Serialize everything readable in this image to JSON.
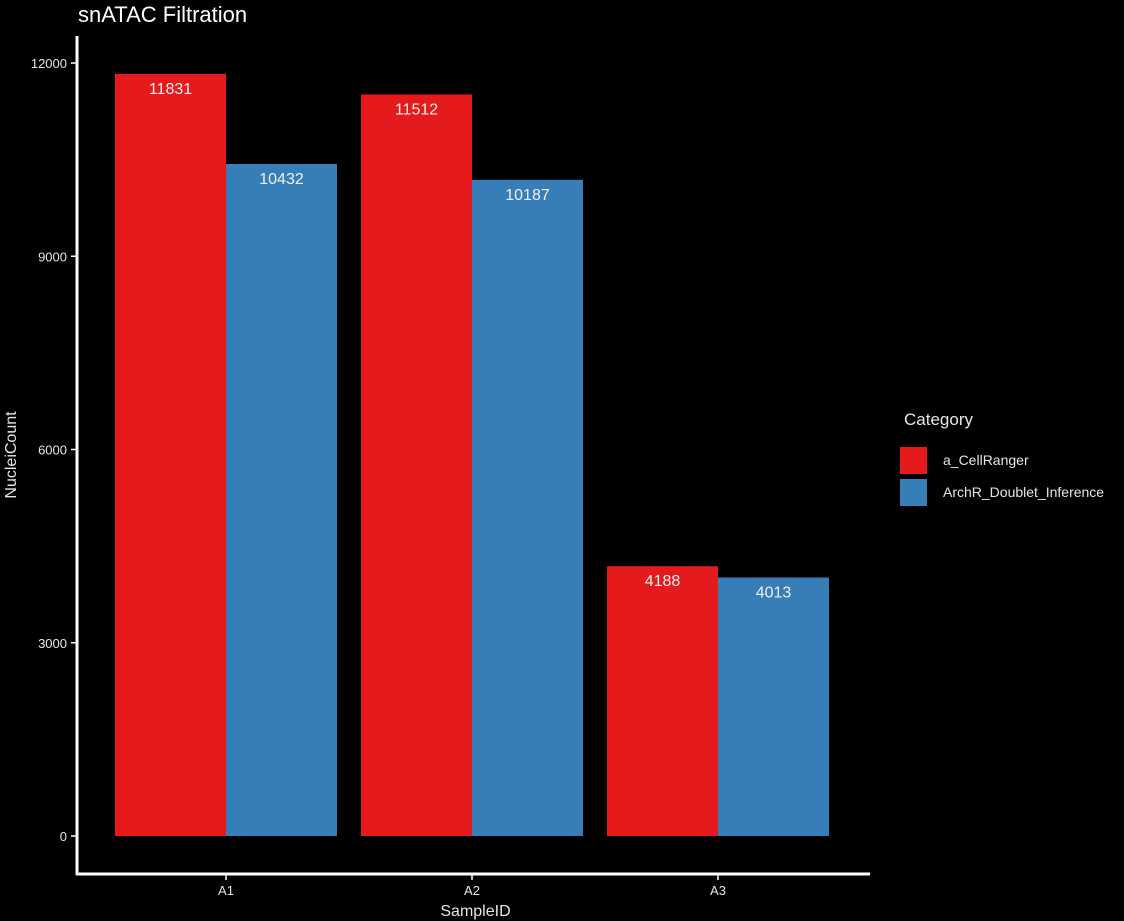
{
  "chart_data": {
    "type": "bar",
    "title": "snATAC Filtration",
    "xlabel": "SampleID",
    "ylabel": "NucleiCount",
    "categories": [
      "A1",
      "A2",
      "A3"
    ],
    "series": [
      {
        "name": "a_CellRanger",
        "color": "#e41a1c",
        "values": [
          11831,
          11512,
          4188
        ]
      },
      {
        "name": "ArchR_Doublet_Inference",
        "color": "#377eb8",
        "values": [
          10432,
          10187,
          4013
        ]
      }
    ],
    "ylim": [
      0,
      12000
    ],
    "yticks": [
      0,
      3000,
      6000,
      9000,
      12000
    ],
    "legend_title": "Category",
    "legend_position": "right",
    "grid": false,
    "background": "#000000"
  }
}
